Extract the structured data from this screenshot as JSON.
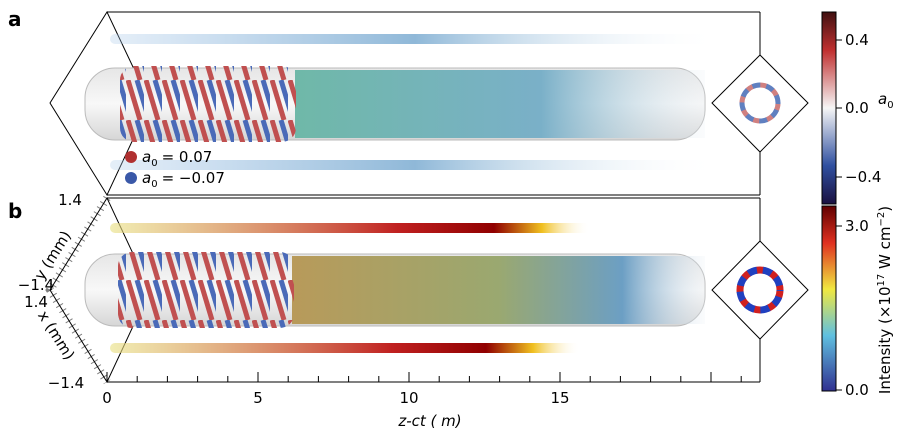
{
  "panels": [
    {
      "label": "a",
      "legend": [
        {
          "symbol": "a",
          "subscript": "0",
          "text": "= 0.07"
        },
        {
          "symbol": "a",
          "subscript": "0",
          "text": "= −0.07"
        }
      ],
      "colorbar": {
        "ticks": [
          "0.4",
          "0.0",
          "−0.4"
        ],
        "label": {
          "symbol": "a",
          "subscript": "0"
        }
      }
    },
    {
      "label": "b",
      "axes": {
        "y_ticks": [
          "1.4",
          "−1.4"
        ],
        "y_label": "y (mm)",
        "x_ticks": [
          "1.4",
          "−1.4"
        ],
        "x_label": "x (mm)"
      },
      "colorbar": {
        "ticks": [
          "3.0",
          "0.0"
        ],
        "label": {
          "text": "Intensity (×10",
          "superscript": "17",
          "unit": " W cm",
          "unit_superscript": "−2",
          "close": ")"
        }
      }
    }
  ],
  "z_axis": {
    "ticks": [
      "0",
      "5",
      "10",
      "15"
    ],
    "label": "z-ct ( m)"
  }
}
